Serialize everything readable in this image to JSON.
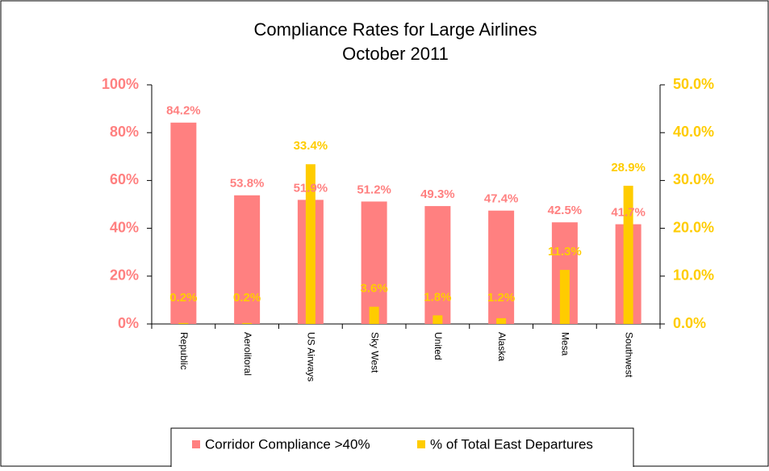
{
  "chart_data": {
    "type": "bar",
    "title": "Compliance Rates for Large Airlines",
    "subtitle": "October 2011",
    "categories": [
      "Republic",
      "Aerolitoral",
      "US Airways",
      "Sky West",
      "United",
      "Alaska",
      "Mesa",
      "Southwest"
    ],
    "series": [
      {
        "name": "Corridor Compliance >40%",
        "color": "#ff8080",
        "values": [
          84.2,
          53.8,
          51.9,
          51.2,
          49.3,
          47.4,
          42.5,
          41.7
        ],
        "value_labels": [
          "84.2%",
          "53.8%",
          "51.9%",
          "51.2%",
          "49.3%",
          "47.4%",
          "42.5%",
          "41.7%"
        ]
      },
      {
        "name": "% of Total East Departures",
        "color": "#ffcc00",
        "axis": "y2",
        "values": [
          0.2,
          0.2,
          33.4,
          3.6,
          1.8,
          1.2,
          11.3,
          28.9
        ],
        "value_labels": [
          "0.2%",
          "0.2%",
          "33.4%",
          "3.6%",
          "1.8%",
          "1.2%",
          "11.3%",
          "28.9%"
        ]
      }
    ],
    "ylim": [
      0,
      100
    ],
    "yticks": [
      {
        "value": 0,
        "label": "0%"
      },
      {
        "value": 20,
        "label": "20%"
      },
      {
        "value": 40,
        "label": "40%"
      },
      {
        "value": 60,
        "label": "60%"
      },
      {
        "value": 80,
        "label": "80%"
      },
      {
        "value": 100,
        "label": "100%"
      }
    ],
    "y2lim": [
      0,
      50
    ],
    "y2ticks": [
      {
        "value": 0,
        "label": "0.0%"
      },
      {
        "value": 10,
        "label": "10.0%"
      },
      {
        "value": 20,
        "label": "20.0%"
      },
      {
        "value": 30,
        "label": "30.0%"
      },
      {
        "value": 40,
        "label": "40.0%"
      },
      {
        "value": 50,
        "label": "50.0%"
      }
    ],
    "grid": false,
    "legend": "bottom"
  }
}
